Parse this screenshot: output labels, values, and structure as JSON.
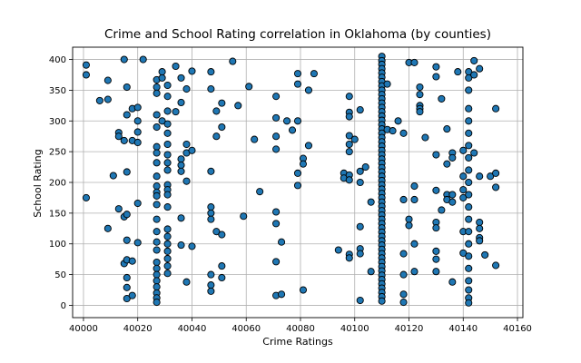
{
  "chart_data": {
    "type": "scatter",
    "title": "Crime and School Rating correlation in Oklahoma (by counties)",
    "xlabel": "Crime Ratings",
    "ylabel": "School Rating",
    "xlim": [
      39996,
      40162
    ],
    "ylim": [
      -20,
      420
    ],
    "xticks": [
      40000,
      40020,
      40040,
      40060,
      40080,
      40100,
      40120,
      40140,
      40160
    ],
    "yticks": [
      0,
      50,
      100,
      150,
      200,
      250,
      300,
      350,
      400
    ],
    "grid": true,
    "marker_color": "#1f77b4",
    "edge_color": "#000000",
    "columns": [
      {
        "x": 40001,
        "y": [
          391,
          375,
          175
        ]
      },
      {
        "x": 40006,
        "y": [
          333
        ]
      },
      {
        "x": 40009,
        "y": [
          366,
          335,
          125
        ]
      },
      {
        "x": 40011,
        "y": [
          211
        ]
      },
      {
        "x": 40013,
        "y": [
          281,
          275,
          157
        ]
      },
      {
        "x": 40015,
        "y": [
          400,
          268,
          144,
          68
        ]
      },
      {
        "x": 40016,
        "y": [
          355,
          310,
          217,
          148,
          106,
          74,
          45,
          29,
          11
        ]
      },
      {
        "x": 40018,
        "y": [
          320,
          268,
          72,
          16
        ]
      },
      {
        "x": 40020,
        "y": [
          322,
          300,
          282,
          265,
          166,
          102
        ]
      },
      {
        "x": 40022,
        "y": [
          400
        ]
      },
      {
        "x": 40027,
        "y": [
          367,
          355,
          345,
          310,
          290,
          258,
          248,
          232,
          210,
          194,
          184,
          178,
          164,
          140,
          120,
          103,
          90,
          70,
          60,
          50,
          40,
          30,
          20,
          12,
          5
        ]
      },
      {
        "x": 40029,
        "y": [
          380,
          370,
          300
        ]
      },
      {
        "x": 40031,
        "y": [
          358,
          340,
          316,
          295,
          280,
          262,
          245,
          232,
          220,
          196,
          188,
          180,
          160,
          124,
          112,
          100,
          88,
          76,
          64,
          52
        ]
      },
      {
        "x": 40034,
        "y": [
          389,
          315
        ]
      },
      {
        "x": 40036,
        "y": [
          370,
          330,
          238,
          228,
          218,
          142,
          98
        ]
      },
      {
        "x": 40038,
        "y": [
          352,
          262,
          248,
          202,
          38
        ]
      },
      {
        "x": 40040,
        "y": [
          381,
          252,
          96
        ]
      },
      {
        "x": 40047,
        "y": [
          380,
          352,
          218,
          160,
          150,
          140,
          50,
          33,
          23
        ]
      },
      {
        "x": 40049,
        "y": [
          316,
          275,
          120
        ]
      },
      {
        "x": 40051,
        "y": [
          329,
          290,
          115,
          64,
          45
        ]
      },
      {
        "x": 40055,
        "y": [
          397
        ]
      },
      {
        "x": 40057,
        "y": [
          325
        ]
      },
      {
        "x": 40059,
        "y": [
          145
        ]
      },
      {
        "x": 40061,
        "y": [
          356
        ]
      },
      {
        "x": 40063,
        "y": [
          270
        ]
      },
      {
        "x": 40065,
        "y": [
          185
        ]
      },
      {
        "x": 40071,
        "y": [
          340,
          305,
          275,
          254,
          152,
          133,
          71,
          16
        ]
      },
      {
        "x": 40073,
        "y": [
          103,
          18
        ]
      },
      {
        "x": 40075,
        "y": [
          300
        ]
      },
      {
        "x": 40077,
        "y": [
          285
        ]
      },
      {
        "x": 40079,
        "y": [
          377,
          360,
          300,
          215,
          195
        ]
      },
      {
        "x": 40081,
        "y": [
          239,
          230,
          25
        ]
      },
      {
        "x": 40083,
        "y": [
          350,
          260
        ]
      },
      {
        "x": 40085,
        "y": [
          377
        ]
      },
      {
        "x": 40094,
        "y": [
          90
        ]
      },
      {
        "x": 40096,
        "y": [
          215,
          207
        ]
      },
      {
        "x": 40098,
        "y": [
          340,
          314,
          307,
          276,
          262,
          250,
          212,
          204,
          83,
          77
        ]
      },
      {
        "x": 40100,
        "y": [
          270
        ]
      },
      {
        "x": 40102,
        "y": [
          318,
          218,
          200,
          128,
          92,
          84,
          8
        ]
      },
      {
        "x": 40104,
        "y": [
          225
        ]
      },
      {
        "x": 40106,
        "y": [
          168,
          55
        ]
      },
      {
        "x": 40110,
        "y": [
          405,
          398,
          392,
          385,
          378,
          371,
          364,
          357,
          350,
          343,
          336,
          329,
          322,
          315,
          308,
          301,
          294,
          287,
          280,
          273,
          266,
          259,
          252,
          245,
          238,
          231,
          224,
          217,
          210,
          203,
          196,
          189,
          182,
          175,
          168,
          161,
          154,
          147,
          140,
          133,
          126,
          119,
          112,
          105,
          98,
          91,
          84,
          77,
          70,
          63,
          56,
          49,
          42,
          35,
          28,
          21,
          14,
          7
        ]
      },
      {
        "x": 40112,
        "y": [
          360,
          286
        ]
      },
      {
        "x": 40114,
        "y": [
          284
        ]
      },
      {
        "x": 40116,
        "y": [
          300
        ]
      },
      {
        "x": 40118,
        "y": [
          280,
          172,
          84,
          5,
          18,
          50
        ]
      },
      {
        "x": 40120,
        "y": [
          395,
          140,
          130
        ]
      },
      {
        "x": 40122,
        "y": [
          395,
          194,
          172,
          100,
          55
        ]
      },
      {
        "x": 40124,
        "y": [
          355,
          343,
          325,
          320,
          315
        ]
      },
      {
        "x": 40126,
        "y": [
          273
        ]
      },
      {
        "x": 40130,
        "y": [
          388,
          372,
          245,
          187,
          135,
          126,
          88,
          75,
          55
        ]
      },
      {
        "x": 40132,
        "y": [
          336,
          155
        ]
      },
      {
        "x": 40134,
        "y": [
          287,
          230,
          180,
          172
        ]
      },
      {
        "x": 40136,
        "y": [
          248,
          240,
          180,
          168,
          38
        ]
      },
      {
        "x": 40138,
        "y": [
          380
        ]
      },
      {
        "x": 40140,
        "y": [
          252,
          210,
          188,
          175,
          120,
          85
        ]
      },
      {
        "x": 40142,
        "y": [
          380,
          370,
          350,
          320,
          300,
          280,
          260,
          240,
          220,
          200,
          180,
          160,
          140,
          120,
          100,
          80,
          60,
          40,
          25,
          12,
          4
        ]
      },
      {
        "x": 40144,
        "y": [
          398,
          375,
          248
        ]
      },
      {
        "x": 40146,
        "y": [
          385,
          210,
          135,
          125,
          110,
          105
        ]
      },
      {
        "x": 40148,
        "y": [
          82
        ]
      },
      {
        "x": 40150,
        "y": [
          210
        ]
      },
      {
        "x": 40152,
        "y": [
          320,
          215,
          192,
          65
        ]
      }
    ]
  }
}
